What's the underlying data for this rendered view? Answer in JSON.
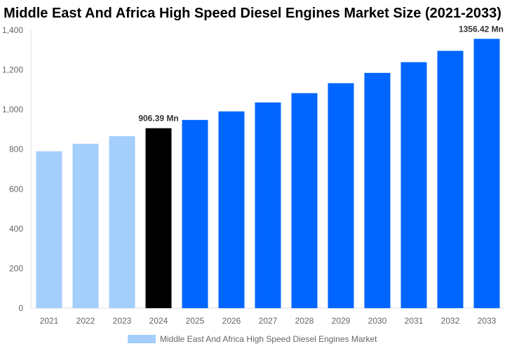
{
  "chart_data": {
    "type": "bar",
    "title": "Middle East And Africa High Speed Diesel Engines Market Size (2021-2033)",
    "xlabel": "",
    "ylabel": "",
    "categories": [
      "2021",
      "2022",
      "2023",
      "2024",
      "2025",
      "2026",
      "2027",
      "2028",
      "2029",
      "2030",
      "2031",
      "2032",
      "2033"
    ],
    "series": [
      {
        "name": "Middle East And Africa High Speed Diesel Engines Market",
        "values": [
          790,
          828,
          866,
          906.39,
          948,
          991,
          1036,
          1083,
          1133,
          1185,
          1239,
          1296,
          1356.42
        ]
      }
    ],
    "ylim": [
      0,
      1400
    ],
    "yticks": [
      0,
      200,
      400,
      600,
      800,
      1000,
      1200,
      1400
    ],
    "ytick_labels": [
      "0",
      "200",
      "400",
      "600",
      "800",
      "1,000",
      "1,200",
      "1,400"
    ],
    "data_labels": [
      {
        "category": "2024",
        "text": "906.39 Mn"
      },
      {
        "category": "2033",
        "text": "1356.42 Mn"
      }
    ],
    "colors": {
      "historic": "#a4cefc",
      "current": "#000000",
      "forecast": "#0066ff",
      "legend_swatch": "#a4cefc"
    },
    "bar_color_groups": [
      "historic",
      "historic",
      "historic",
      "current",
      "forecast",
      "forecast",
      "forecast",
      "forecast",
      "forecast",
      "forecast",
      "forecast",
      "forecast",
      "forecast"
    ],
    "grid": false,
    "legend_position": "bottom-center"
  }
}
